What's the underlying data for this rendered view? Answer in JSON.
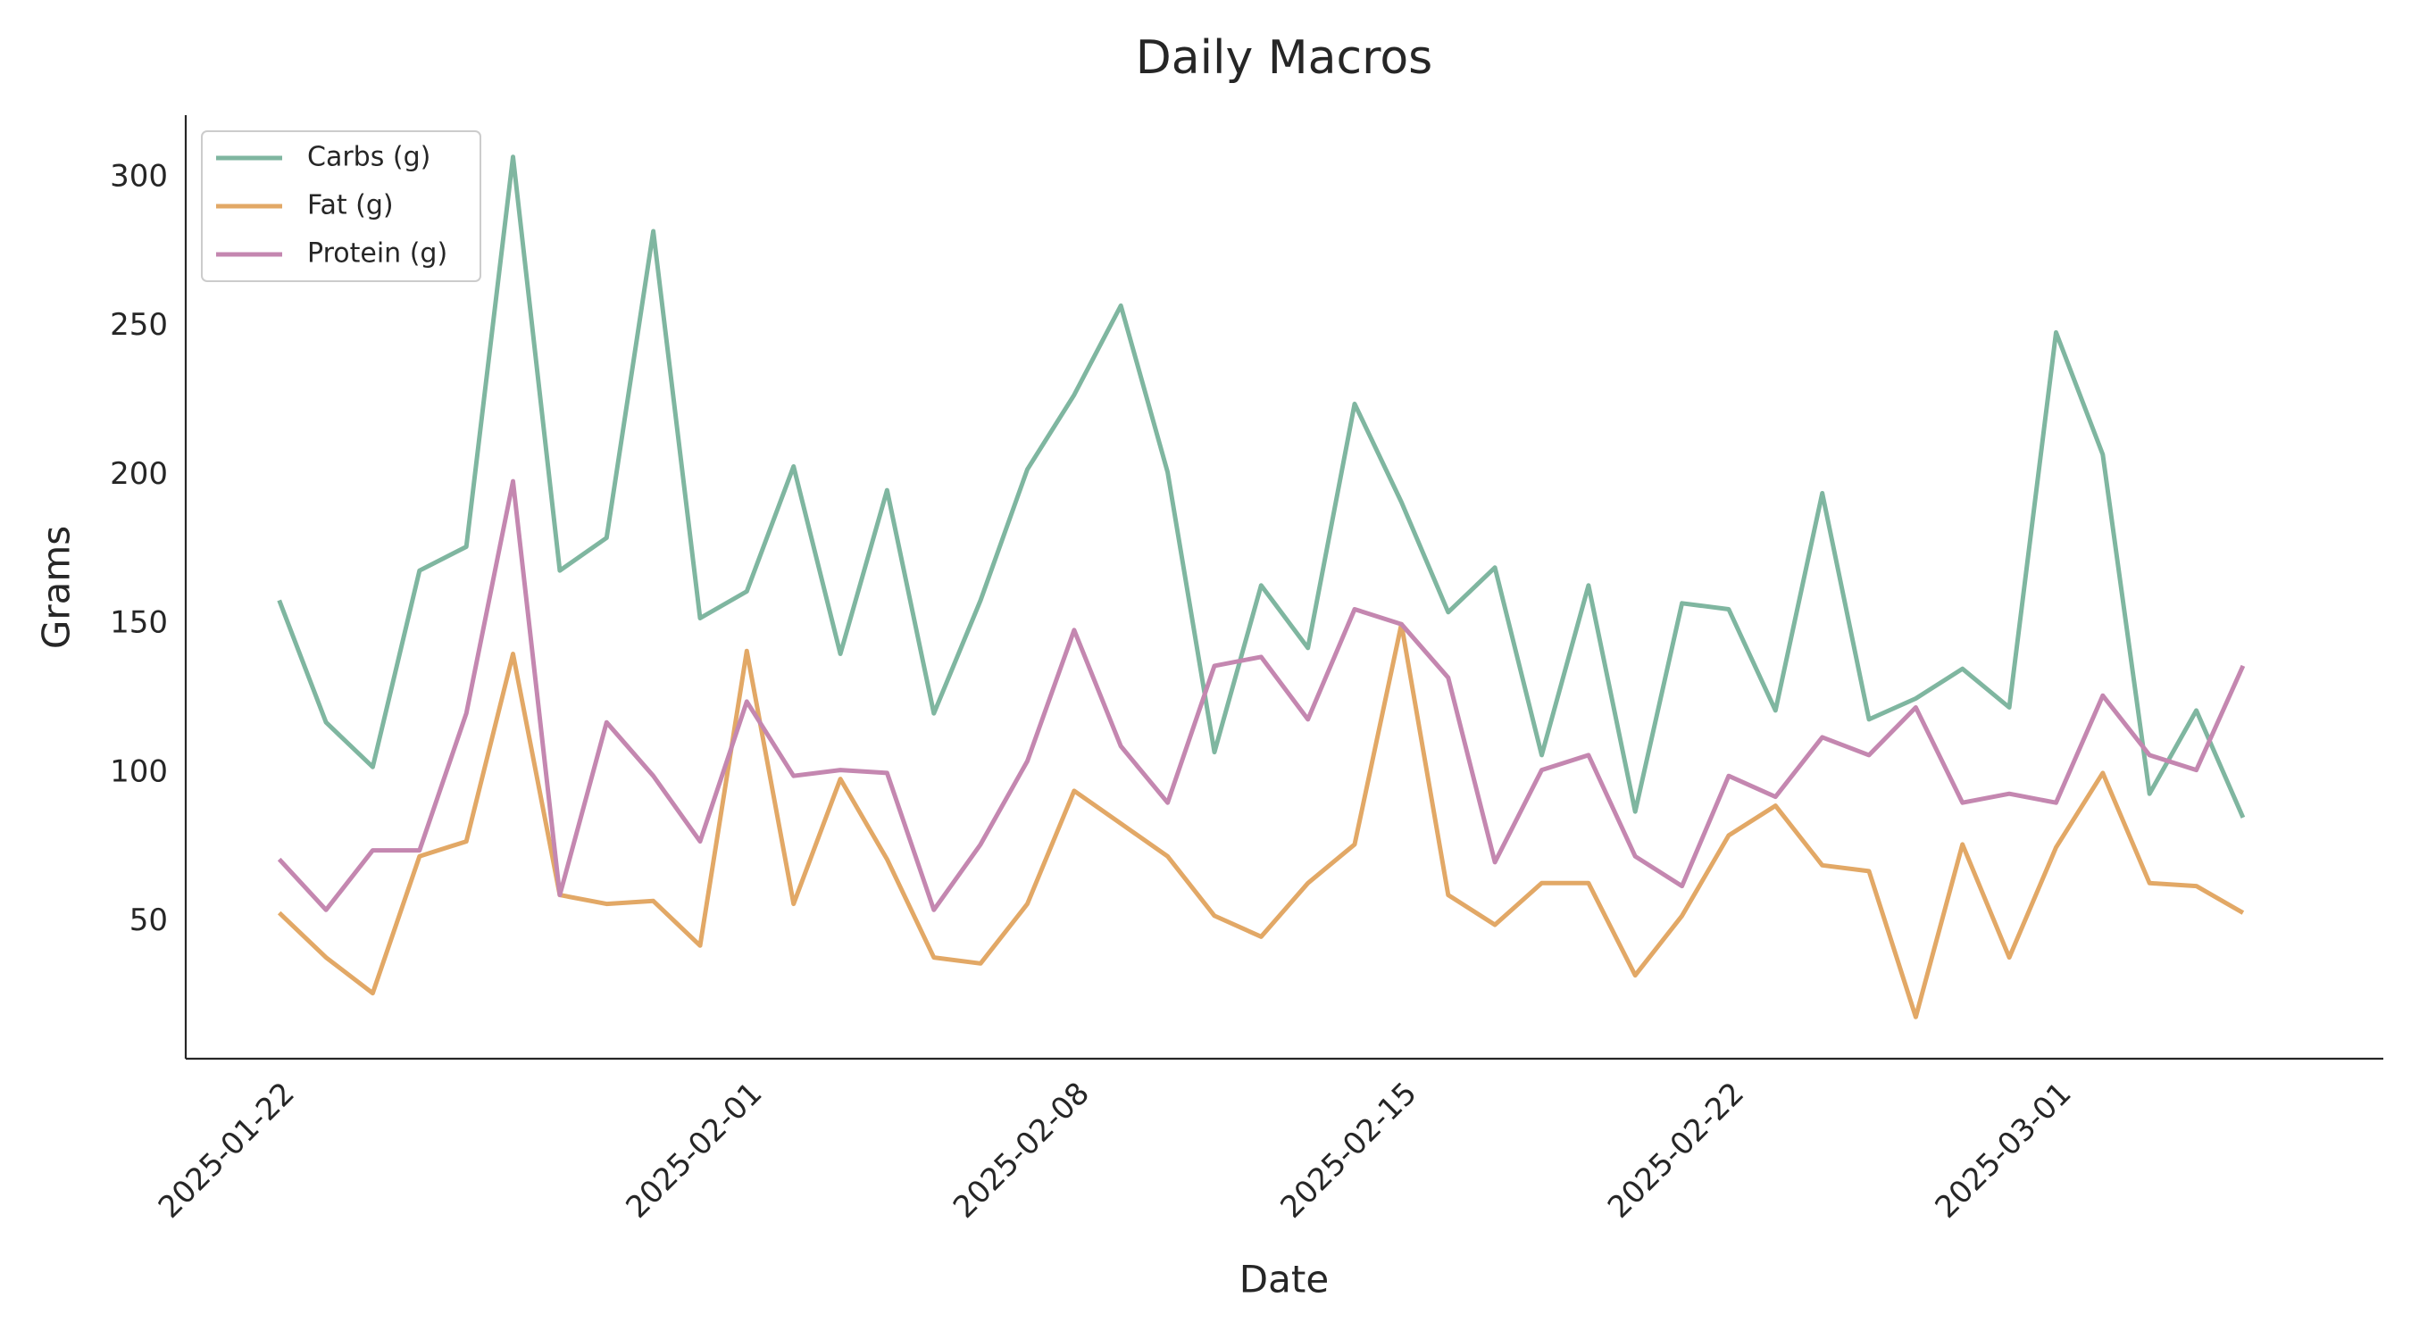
{
  "chart_data": {
    "type": "line",
    "title": "Daily Macros",
    "xlabel": "Date",
    "ylabel": "Grams",
    "x": [
      "2025-01-22",
      "2025-01-23",
      "2025-01-24",
      "2025-01-25",
      "2025-01-26",
      "2025-01-27",
      "2025-01-28",
      "2025-01-29",
      "2025-01-30",
      "2025-01-31",
      "2025-02-01",
      "2025-02-02",
      "2025-02-03",
      "2025-02-04",
      "2025-02-05",
      "2025-02-06",
      "2025-02-07",
      "2025-02-08",
      "2025-02-09",
      "2025-02-10",
      "2025-02-11",
      "2025-02-12",
      "2025-02-13",
      "2025-02-14",
      "2025-02-15",
      "2025-02-16",
      "2025-02-17",
      "2025-02-18",
      "2025-02-19",
      "2025-02-20",
      "2025-02-21",
      "2025-02-22",
      "2025-02-23",
      "2025-02-24",
      "2025-02-25",
      "2025-02-26",
      "2025-02-27",
      "2025-02-28",
      "2025-03-01",
      "2025-03-02",
      "2025-03-03",
      "2025-03-04",
      "2025-03-05"
    ],
    "series": [
      {
        "name": "Carbs (g)",
        "color": "#7fb6a0",
        "values": [
          158,
          117,
          102,
          168,
          176,
          307,
          168,
          179,
          282,
          152,
          161,
          203,
          140,
          195,
          120,
          158,
          202,
          227,
          257,
          201,
          107,
          163,
          142,
          224,
          191,
          154,
          169,
          106,
          163,
          87,
          157,
          155,
          121,
          194,
          118,
          125,
          135,
          122,
          248,
          207,
          93,
          121,
          85
        ]
      },
      {
        "name": "Fat (g)",
        "color": "#e2a866",
        "values": [
          53,
          38,
          26,
          72,
          77,
          140,
          59,
          56,
          57,
          42,
          141,
          56,
          98,
          71,
          38,
          36,
          56,
          94,
          83,
          72,
          52,
          45,
          63,
          76,
          150,
          59,
          49,
          63,
          63,
          32,
          52,
          79,
          89,
          69,
          67,
          18,
          76,
          38,
          75,
          100,
          63,
          62,
          53
        ]
      },
      {
        "name": "Protein (g)",
        "color": "#c487b0",
        "values": [
          71,
          54,
          74,
          74,
          120,
          198,
          59,
          117,
          99,
          77,
          124,
          99,
          101,
          100,
          54,
          76,
          104,
          148,
          109,
          90,
          136,
          139,
          118,
          155,
          150,
          132,
          70,
          101,
          106,
          72,
          62,
          99,
          92,
          112,
          106,
          122,
          90,
          93,
          90,
          126,
          106,
          101,
          136
        ]
      }
    ],
    "xlim": [
      "2025-01-20",
      "2025-03-08"
    ],
    "xticks": [
      "2025-01-22",
      "2025-02-01",
      "2025-02-08",
      "2025-02-15",
      "2025-02-22",
      "2025-03-01"
    ],
    "ylim": [
      4,
      321
    ],
    "yticks": [
      50,
      100,
      150,
      200,
      250,
      300
    ],
    "grid": false,
    "legend": "upper left"
  }
}
